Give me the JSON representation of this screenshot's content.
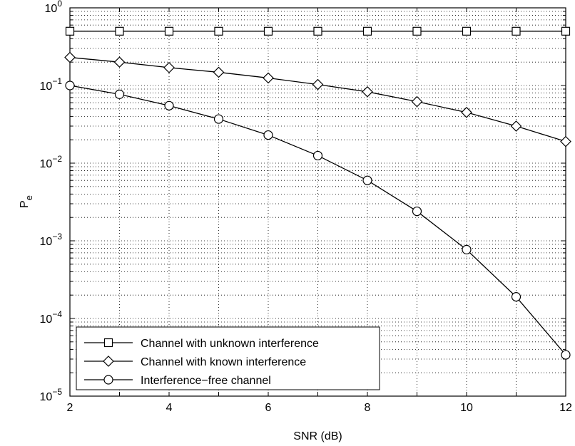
{
  "chart_data": {
    "type": "line",
    "xlabel": "SNR (dB)",
    "ylabel_main": "P",
    "ylabel_sub": "e",
    "x": [
      2,
      3,
      4,
      5,
      6,
      7,
      8,
      9,
      10,
      11,
      12
    ],
    "xlim": [
      2,
      12
    ],
    "x_ticks": [
      "2",
      "4",
      "6",
      "8",
      "10",
      "12"
    ],
    "yscale": "log",
    "ylim": [
      1e-05,
      1
    ],
    "y_ticks": [
      {
        "base": "10",
        "exp": "0"
      },
      {
        "base": "10",
        "exp": "−1"
      },
      {
        "base": "10",
        "exp": "−2"
      },
      {
        "base": "10",
        "exp": "−3"
      },
      {
        "base": "10",
        "exp": "−4"
      },
      {
        "base": "10",
        "exp": "−5"
      }
    ],
    "grid": true,
    "legend_position": "bottom-left",
    "line_color": "#000000",
    "series": [
      {
        "name": "Channel with unknown interference",
        "marker": "square",
        "values": [
          0.5,
          0.5,
          0.5,
          0.5,
          0.5,
          0.5,
          0.5,
          0.5,
          0.5,
          0.5,
          0.5
        ]
      },
      {
        "name": "Channel with known interference",
        "marker": "diamond",
        "values": [
          0.23,
          0.2,
          0.17,
          0.148,
          0.125,
          0.103,
          0.083,
          0.062,
          0.045,
          0.03,
          0.019
        ]
      },
      {
        "name": "Interference−free channel",
        "marker": "circle",
        "values": [
          0.1,
          0.077,
          0.055,
          0.037,
          0.023,
          0.0125,
          0.006,
          0.0024,
          0.00077,
          0.00019,
          3.4e-05
        ]
      }
    ]
  }
}
